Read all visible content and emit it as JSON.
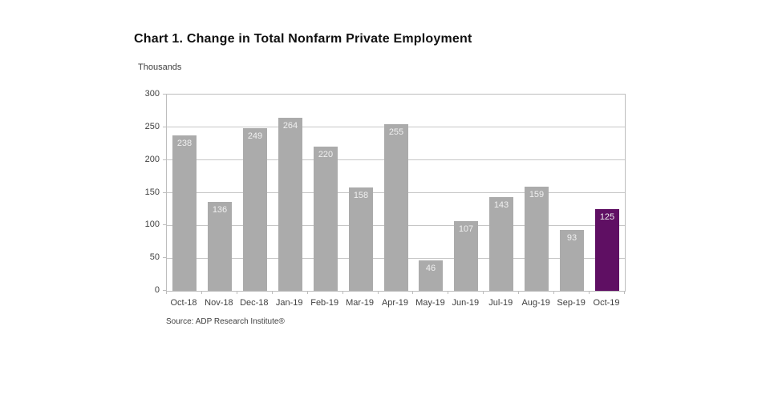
{
  "chart": {
    "title": "Chart 1. Change in Total Nonfarm Private Employment",
    "units_label": "Thousands",
    "source": "Source: ADP Research Institute®"
  },
  "chart_data": {
    "type": "bar",
    "title": "Chart 1. Change in Total Nonfarm Private Employment",
    "categories": [
      "Oct-18",
      "Nov-18",
      "Dec-18",
      "Jan-19",
      "Feb-19",
      "Mar-19",
      "Apr-19",
      "May-19",
      "Jun-19",
      "Jul-19",
      "Aug-19",
      "Sep-19",
      "Oct-19"
    ],
    "values": [
      238,
      136,
      249,
      264,
      220,
      158,
      255,
      46,
      107,
      143,
      159,
      93,
      125
    ],
    "xlabel": "",
    "ylabel": "Thousands",
    "ylim": [
      0,
      300
    ],
    "yticks": [
      0,
      50,
      100,
      150,
      200,
      250,
      300
    ],
    "grid": true,
    "legend": false,
    "bar_color": "#ababab",
    "highlight_index": 12,
    "highlight_color": "#5f0f63",
    "value_label_color": "#f0f0f0",
    "source": "Source: ADP Research Institute®"
  }
}
